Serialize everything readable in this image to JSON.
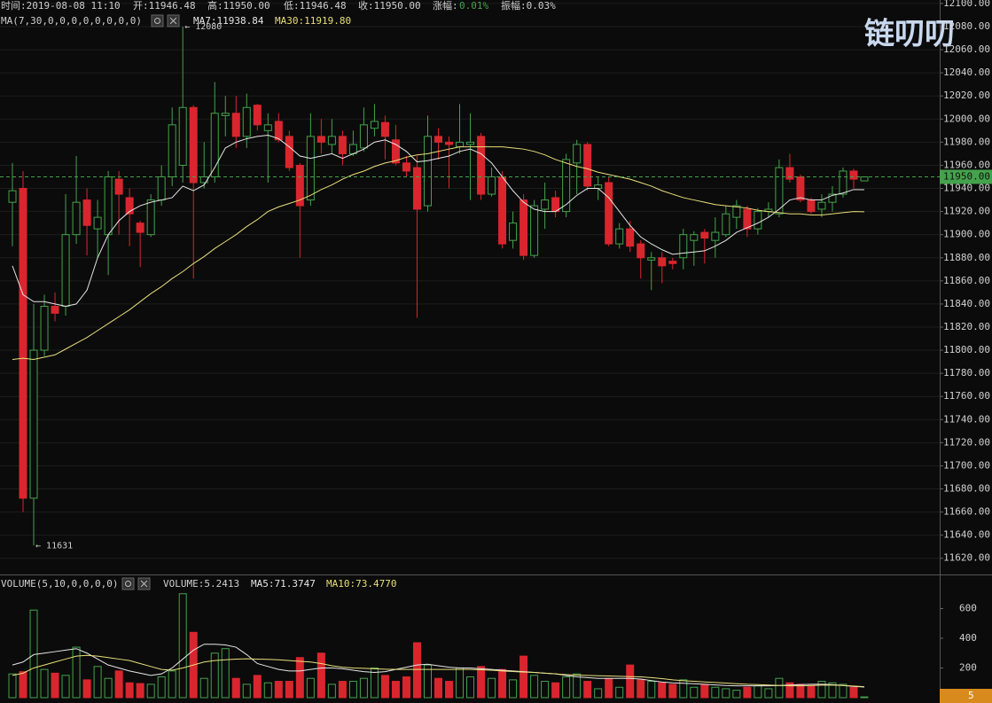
{
  "chart_data": {
    "type": "candlestick",
    "info": [
      "时间:2019-08-08 11:10",
      "开:11946.48",
      "高:11950.00",
      "低:11946.48",
      "收:11950.00",
      "涨幅:",
      "0.01%",
      "振幅:0.03%"
    ],
    "ma_title": "MA(7,30,0,0,0,0,0,0,0,0)",
    "watermark": "链叨叨",
    "up_color": "#45a24c",
    "down_color": "#d9262e",
    "ylim": [
      11606,
      12103
    ],
    "yticks": [
      {
        "value": 11620,
        "label": "11620.00"
      },
      {
        "value": 11640,
        "label": "11640.00"
      },
      {
        "value": 11660,
        "label": "11660.00"
      },
      {
        "value": 11680,
        "label": "11680.00"
      },
      {
        "value": 11700,
        "label": "11700.00"
      },
      {
        "value": 11720,
        "label": "11720.00"
      },
      {
        "value": 11740,
        "label": "11740.00"
      },
      {
        "value": 11760,
        "label": "11760.00"
      },
      {
        "value": 11780,
        "label": "11780.00"
      },
      {
        "value": 11800,
        "label": "11800.00"
      },
      {
        "value": 11820,
        "label": "11820.00"
      },
      {
        "value": 11840,
        "label": "11840.00"
      },
      {
        "value": 11860,
        "label": "11860.00"
      },
      {
        "value": 11880,
        "label": "11880.00"
      },
      {
        "value": 11900,
        "label": "11900.00"
      },
      {
        "value": 11920,
        "label": "11920.00"
      },
      {
        "value": 11940,
        "label": "11940.00"
      },
      {
        "value": 11960,
        "label": "11960.00"
      },
      {
        "value": 11980,
        "label": "11980.00"
      },
      {
        "value": 12000,
        "label": "12000.00"
      },
      {
        "value": 12020,
        "label": "12020.00"
      },
      {
        "value": 12040,
        "label": "12040.00"
      },
      {
        "value": 12060,
        "label": "12060.00"
      },
      {
        "value": 12080,
        "label": "12080.00"
      },
      {
        "value": 12100,
        "label": "12100.00"
      }
    ],
    "grid": true,
    "open": [
      11928,
      11940,
      11672,
      11800,
      11838,
      11838,
      11900,
      11930,
      11905,
      11900,
      11948,
      11932,
      11910,
      11900,
      11930,
      11950,
      11960,
      12010,
      11945,
      11950,
      12003,
      12005,
      11985,
      12012,
      11990,
      11998,
      11985,
      11960,
      11930,
      11985,
      11978,
      11985,
      11970,
      11975,
      11992,
      11997,
      11982,
      11962,
      11958,
      11925,
      11985,
      11980,
      11976,
      11978,
      11985,
      11935,
      11950,
      11895,
      11930,
      11882,
      11922,
      11932,
      11920,
      11962,
      11978,
      11940,
      11945,
      11892,
      11905,
      11892,
      11878,
      11880,
      11877,
      11880,
      11895,
      11902,
      11895,
      11900,
      11915,
      11922,
      11905,
      11920,
      11918,
      11958,
      11950,
      11930,
      11922,
      11928,
      11935,
      11955,
      11946.48
    ],
    "high": [
      11962,
      11955,
      11840,
      11848,
      11850,
      11935,
      11968,
      11940,
      11930,
      11955,
      11955,
      11940,
      11912,
      11935,
      11960,
      12010,
      12080,
      12012,
      11980,
      12032,
      12020,
      12020,
      12022,
      12013,
      12005,
      12005,
      11990,
      11962,
      12005,
      12000,
      12000,
      11990,
      11990,
      12010,
      12013,
      12003,
      11995,
      11968,
      11968,
      12003,
      11992,
      11985,
      12013,
      12005,
      11988,
      11958,
      11955,
      11920,
      11935,
      11930,
      11945,
      11938,
      11970,
      11982,
      11980,
      11950,
      11950,
      11910,
      11912,
      11895,
      11885,
      11885,
      11880,
      11905,
      11903,
      11905,
      11915,
      11925,
      11930,
      11925,
      11923,
      11928,
      11965,
      11970,
      11952,
      11932,
      11935,
      11942,
      11958,
      11957,
      11950
    ],
    "low": [
      11890,
      11660,
      11631,
      11795,
      11825,
      11830,
      11892,
      11882,
      11880,
      11865,
      11900,
      11890,
      11872,
      11898,
      11925,
      11942,
      11945,
      11862,
      11940,
      11945,
      11985,
      11975,
      11975,
      11990,
      11945,
      11980,
      11955,
      11880,
      11925,
      11970,
      11970,
      11960,
      11968,
      11972,
      11985,
      11965,
      11960,
      11950,
      11828,
      11920,
      11965,
      11940,
      11970,
      11930,
      11930,
      11933,
      11888,
      11888,
      11878,
      11880,
      11905,
      11915,
      11915,
      11935,
      11938,
      11930,
      11890,
      11888,
      11885,
      11862,
      11852,
      11858,
      11870,
      11870,
      11873,
      11875,
      11880,
      11898,
      11905,
      11898,
      11900,
      11915,
      11915,
      11945,
      11928,
      11918,
      11915,
      11920,
      11932,
      11940,
      11946.48
    ],
    "close": [
      11938,
      11672,
      11800,
      11838,
      11832,
      11900,
      11928,
      11908,
      11915,
      11950,
      11935,
      11918,
      11902,
      11930,
      11950,
      11995,
      12010,
      11945,
      11950,
      12005,
      12005,
      11985,
      12010,
      11995,
      11995,
      11982,
      11958,
      11925,
      11985,
      11980,
      11985,
      11970,
      11978,
      11995,
      11998,
      11985,
      11962,
      11955,
      11922,
      11985,
      11980,
      11978,
      11980,
      11980,
      11935,
      11950,
      11892,
      11910,
      11882,
      11925,
      11930,
      11920,
      11965,
      11978,
      11942,
      11943,
      11892,
      11905,
      11890,
      11880,
      11880,
      11873,
      11875,
      11900,
      11900,
      11897,
      11902,
      11918,
      11925,
      11905,
      11920,
      11922,
      11958,
      11948,
      11930,
      11920,
      11928,
      11935,
      11955,
      11948,
      11950
    ],
    "series": [
      {
        "label": "MA7:11938.84",
        "color": "#e6e6e6",
        "values": [
          11873,
          11848,
          11842,
          11842,
          11840,
          11838,
          11840,
          11852,
          11880,
          11900,
          11912,
          11920,
          11925,
          11928,
          11930,
          11932,
          11942,
          11938,
          11943,
          11958,
          11975,
          11980,
          11983,
          11985,
          11986,
          11983,
          11976,
          11968,
          11966,
          11968,
          11970,
          11966,
          11970,
          11974,
          11980,
          11982,
          11978,
          11972,
          11963,
          11964,
          11966,
          11968,
          11972,
          11974,
          11970,
          11962,
          11950,
          11938,
          11928,
          11922,
          11920,
          11920,
          11926,
          11934,
          11940,
          11940,
          11932,
          11920,
          11908,
          11898,
          11892,
          11887,
          11883,
          11884,
          11885,
          11886,
          11890,
          11895,
          11902,
          11906,
          11910,
          11915,
          11922,
          11930,
          11932,
          11930,
          11930,
          11934,
          11936,
          11939,
          11938.84
        ]
      },
      {
        "label": "MA30:11919.80",
        "color": "#e8df7a",
        "values": [
          11792,
          11793,
          11792,
          11794,
          11796,
          11801,
          11806,
          11811,
          11817,
          11823,
          11829,
          11835,
          11842,
          11849,
          11855,
          11862,
          11868,
          11875,
          11881,
          11888,
          11894,
          11900,
          11907,
          11913,
          11920,
          11924,
          11927,
          11930,
          11934,
          11939,
          11943,
          11948,
          11952,
          11955,
          11959,
          11962,
          11964,
          11967,
          11969,
          11970,
          11972,
          11974,
          11976,
          11976,
          11976,
          11976,
          11976,
          11975,
          11974,
          11972,
          11969,
          11965,
          11962,
          11959,
          11957,
          11954,
          11952,
          11950,
          11948,
          11945,
          11942,
          11938,
          11935,
          11932,
          11930,
          11928,
          11926,
          11925,
          11924,
          11923,
          11921,
          11920,
          11919,
          11918,
          11918,
          11917,
          11917,
          11918,
          11919,
          11920,
          11919.8
        ]
      }
    ],
    "last_price": {
      "value": 11950,
      "label": "11950.00"
    },
    "annotations": [
      {
        "value": 12080,
        "label": "← 12080"
      },
      {
        "value": 11631,
        "label": "← 11631"
      }
    ],
    "volume": {
      "title": "VOLUME(5,10,0,0,0,0)",
      "label": "VOLUME:5.2413",
      "ylim": [
        -36,
        818
      ],
      "yticks": [
        200,
        400,
        600
      ],
      "values": [
        160,
        175,
        590,
        190,
        165,
        150,
        340,
        120,
        210,
        130,
        180,
        100,
        95,
        90,
        140,
        180,
        700,
        440,
        130,
        300,
        330,
        130,
        90,
        150,
        100,
        110,
        110,
        270,
        130,
        300,
        90,
        110,
        110,
        130,
        200,
        150,
        110,
        140,
        370,
        220,
        130,
        110,
        200,
        140,
        210,
        130,
        190,
        120,
        280,
        150,
        110,
        100,
        140,
        160,
        110,
        60,
        130,
        70,
        220,
        120,
        110,
        100,
        90,
        120,
        70,
        90,
        70,
        60,
        50,
        70,
        80,
        60,
        130,
        100,
        90,
        80,
        110,
        100,
        90,
        70,
        5.2413
      ],
      "last": {
        "value": 5.2413,
        "label": "5"
      },
      "series": [
        {
          "label": "MA5:71.3747",
          "color": "#e6e6e6",
          "values": [
            220,
            240,
            290,
            300,
            310,
            320,
            330,
            300,
            260,
            220,
            200,
            180,
            165,
            150,
            160,
            200,
            260,
            320,
            360,
            360,
            355,
            340,
            290,
            230,
            210,
            190,
            180,
            180,
            190,
            200,
            200,
            195,
            185,
            175,
            170,
            175,
            190,
            205,
            220,
            225,
            215,
            205,
            200,
            200,
            195,
            190,
            185,
            180,
            175,
            170,
            165,
            160,
            150,
            140,
            135,
            130,
            130,
            130,
            130,
            125,
            115,
            105,
            100,
            97,
            94,
            90,
            86,
            82,
            80,
            80,
            80,
            80,
            82,
            85,
            88,
            90,
            90,
            88,
            82,
            76,
            71.3747
          ]
        },
        {
          "label": "MA10:73.4770",
          "color": "#e8df7a",
          "values": [
            150,
            165,
            200,
            220,
            240,
            260,
            280,
            285,
            280,
            270,
            260,
            250,
            230,
            210,
            190,
            185,
            200,
            220,
            240,
            250,
            255,
            260,
            262,
            260,
            258,
            255,
            250,
            245,
            240,
            230,
            215,
            205,
            200,
            198,
            195,
            192,
            190,
            190,
            190,
            190,
            190,
            190,
            190,
            190,
            188,
            185,
            180,
            176,
            172,
            170,
            165,
            160,
            155,
            152,
            150,
            148,
            146,
            144,
            142,
            140,
            135,
            128,
            120,
            114,
            110,
            106,
            102,
            98,
            94,
            90,
            88,
            85,
            82,
            80,
            80,
            82,
            84,
            85,
            82,
            78,
            73.477
          ]
        }
      ]
    }
  }
}
